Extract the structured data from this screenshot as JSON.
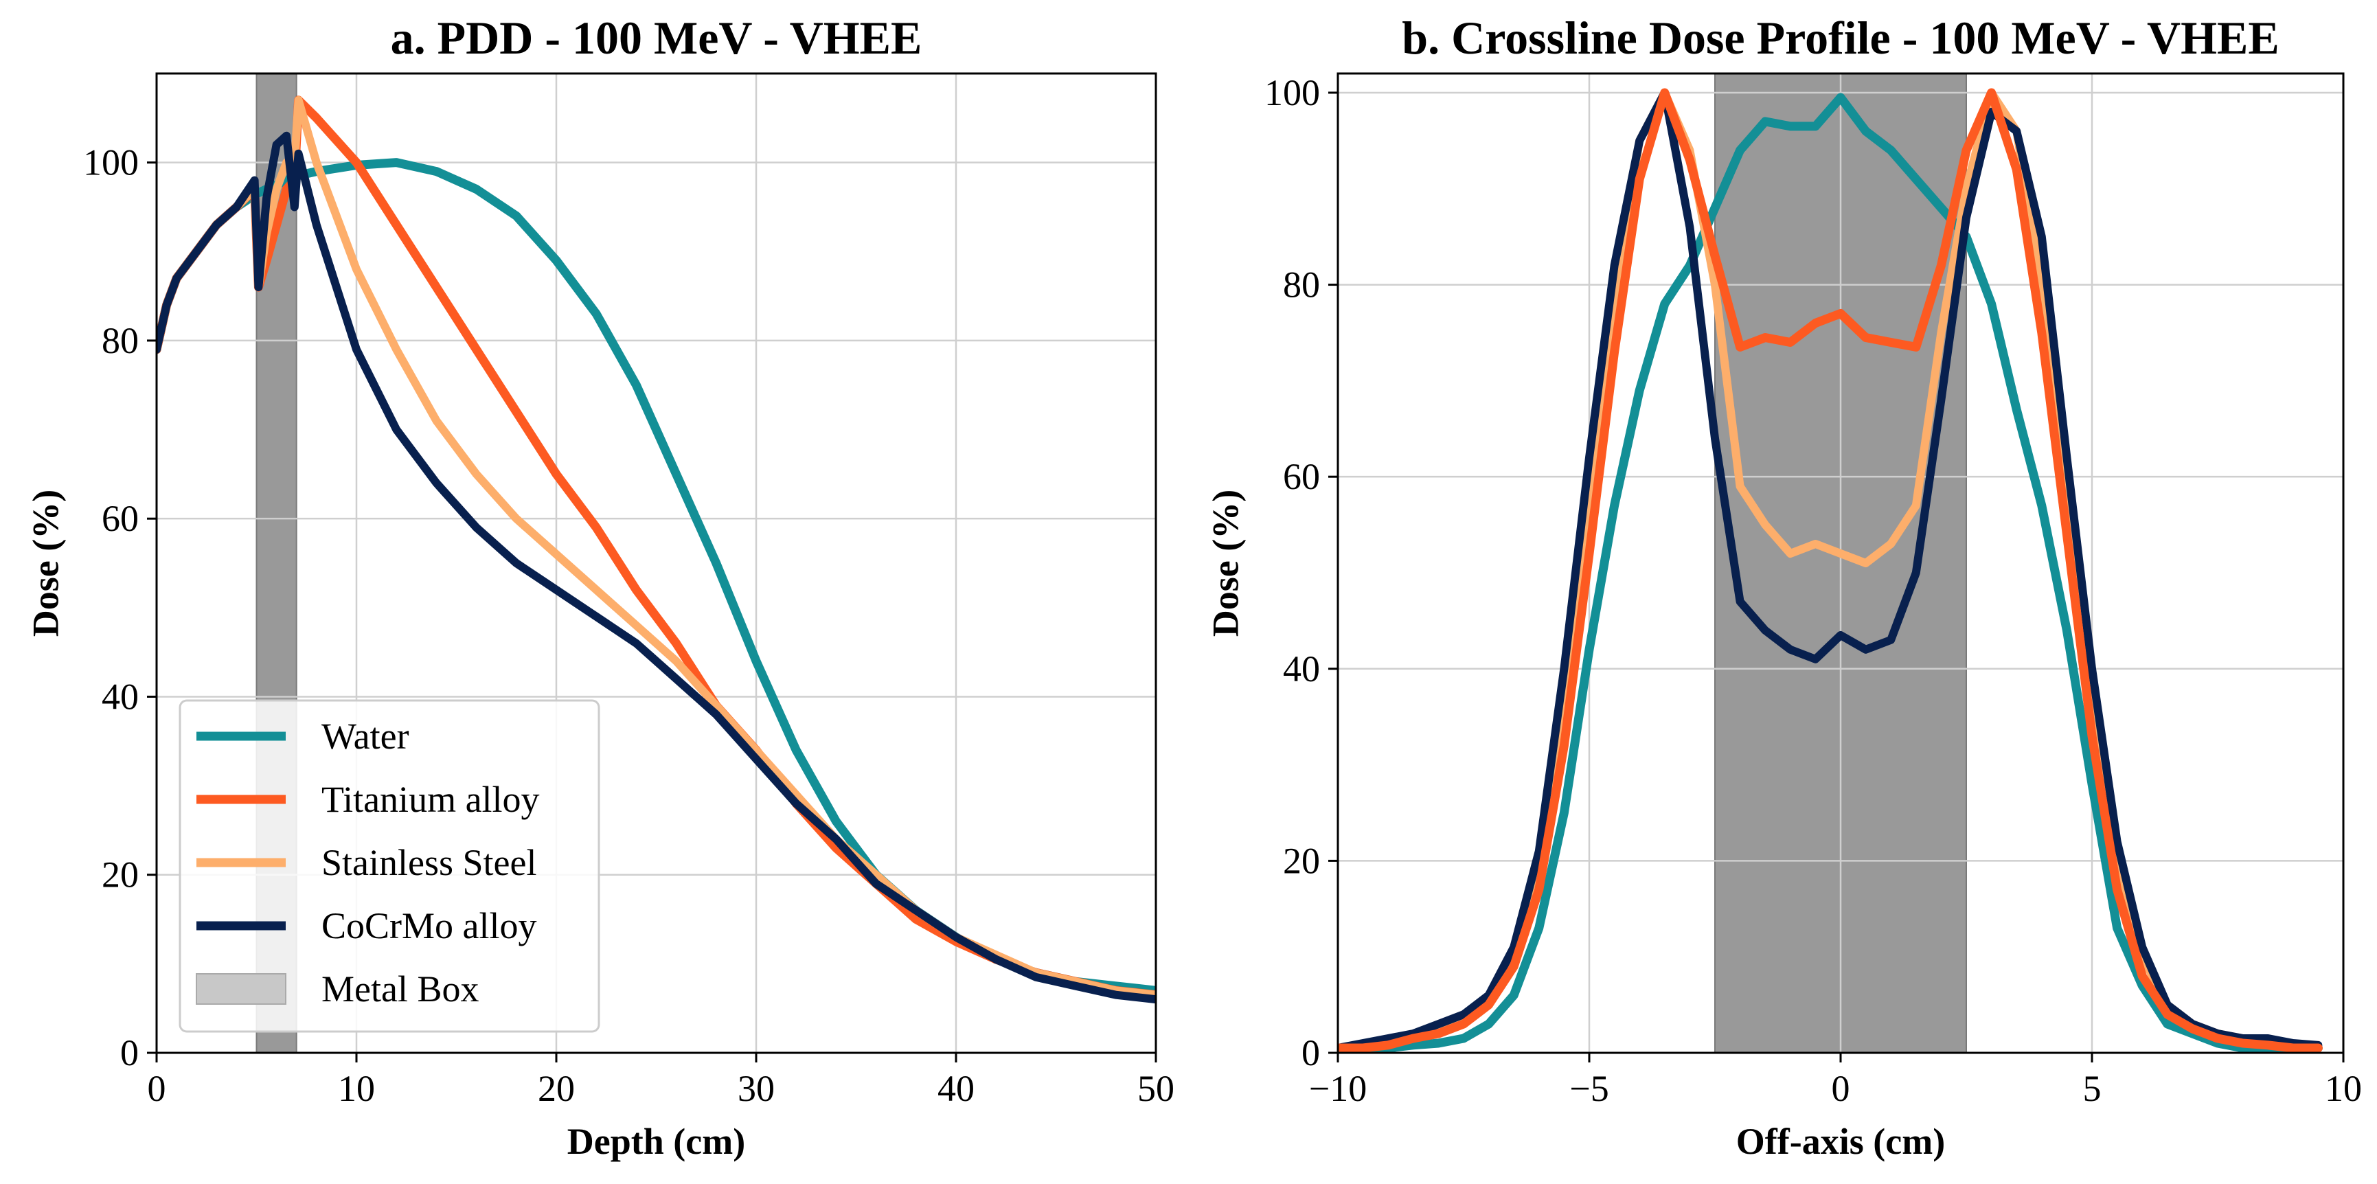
{
  "chart_data": [
    {
      "type": "line",
      "title": "a. PDD - 100 MeV - VHEE",
      "xlabel": "Depth (cm)",
      "ylabel": "Dose (%)",
      "xlim": [
        0,
        50
      ],
      "ylim": [
        0,
        110
      ],
      "xticks": [
        0,
        10,
        20,
        30,
        40,
        50
      ],
      "yticks": [
        0,
        20,
        40,
        60,
        80,
        100
      ],
      "grid": true,
      "shaded_region": {
        "x0": 5,
        "x1": 7,
        "color": "#999999"
      },
      "legend": {
        "position": "lower-left",
        "entries": [
          {
            "label": "Water",
            "color": "#138f96",
            "kind": "line"
          },
          {
            "label": "Titanium alloy",
            "color": "#fd5a21",
            "kind": "line"
          },
          {
            "label": "Stainless Steel",
            "color": "#fdae6b",
            "kind": "line"
          },
          {
            "label": "CoCrMo alloy",
            "color": "#08204e",
            "kind": "line"
          },
          {
            "label": "Metal Box",
            "color": "#c8c8c8",
            "kind": "patch"
          }
        ]
      },
      "series": [
        {
          "name": "Water",
          "color": "#138f96",
          "x": [
            0,
            0.5,
            1,
            2,
            3,
            4,
            5,
            6,
            7,
            8,
            10,
            12,
            14,
            16,
            18,
            20,
            22,
            24,
            26,
            28,
            30,
            32,
            34,
            36,
            38,
            40,
            42,
            44,
            46,
            48,
            50
          ],
          "y": [
            79,
            84,
            87,
            90,
            93,
            95,
            96.5,
            97.5,
            98.5,
            99,
            99.7,
            100,
            99,
            97,
            94,
            89,
            83,
            75,
            65,
            55,
            44,
            34,
            26,
            20,
            16,
            13,
            10.5,
            9,
            8,
            7.5,
            7
          ]
        },
        {
          "name": "Titanium alloy",
          "color": "#fd5a21",
          "x": [
            0,
            0.5,
            1,
            2,
            3,
            4,
            4.9,
            5.1,
            5.5,
            6,
            6.5,
            6.9,
            7.1,
            8,
            10,
            12,
            14,
            16,
            18,
            20,
            22,
            24,
            26,
            28,
            30,
            32,
            34,
            36,
            38,
            40,
            42,
            44,
            46,
            48,
            50
          ],
          "y": [
            79,
            84,
            87,
            90,
            93,
            95,
            97,
            86,
            89,
            93,
            97,
            98,
            107,
            105,
            100,
            93,
            86,
            79,
            72,
            65,
            59,
            52,
            46,
            39,
            34,
            28,
            23,
            19,
            15,
            12.5,
            10.5,
            9,
            8,
            7,
            6.5
          ]
        },
        {
          "name": "Stainless Steel",
          "color": "#fdae6b",
          "x": [
            0,
            0.5,
            1,
            2,
            3,
            4,
            4.9,
            5.1,
            5.5,
            6,
            6.5,
            6.9,
            7.1,
            8,
            10,
            12,
            14,
            16,
            18,
            20,
            22,
            24,
            26,
            28,
            30,
            32,
            34,
            36,
            38,
            40,
            42,
            44,
            46,
            48,
            50
          ],
          "y": [
            79,
            84,
            87,
            90,
            93,
            95,
            97,
            86,
            92,
            97,
            100,
            100,
            107,
            100,
            88,
            79,
            71,
            65,
            60,
            56,
            52,
            48,
            44,
            39,
            34,
            29,
            24,
            20,
            16,
            13,
            11,
            9,
            8,
            7,
            6.5
          ]
        },
        {
          "name": "CoCrMo alloy",
          "color": "#08204e",
          "x": [
            0,
            0.5,
            1,
            2,
            3,
            4,
            4.9,
            5.1,
            5.5,
            6,
            6.5,
            6.9,
            7.1,
            8,
            10,
            12,
            14,
            16,
            18,
            20,
            22,
            24,
            26,
            28,
            30,
            32,
            34,
            36,
            38,
            40,
            42,
            44,
            46,
            48,
            50
          ],
          "y": [
            79,
            84,
            87,
            90,
            93,
            95,
            98,
            86,
            96,
            102,
            103,
            95,
            101,
            93,
            79,
            70,
            64,
            59,
            55,
            52,
            49,
            46,
            42,
            38,
            33,
            28,
            24,
            19,
            16,
            13,
            10.5,
            8.5,
            7.5,
            6.5,
            6
          ]
        }
      ]
    },
    {
      "type": "line",
      "title": "b. Crossline Dose Profile - 100 MeV - VHEE",
      "xlabel": "Off-axis (cm)",
      "ylabel": "Dose (%)",
      "xlim": [
        -10,
        10
      ],
      "ylim": [
        0,
        102
      ],
      "xticks": [
        -10,
        -5,
        0,
        5,
        10
      ],
      "xtick_labels": [
        "−10",
        "−5",
        "0",
        "5",
        "10"
      ],
      "yticks": [
        0,
        20,
        40,
        60,
        80,
        100
      ],
      "grid": true,
      "shaded_region": {
        "x0": -2.5,
        "x1": 2.5,
        "color": "#999999"
      },
      "series": [
        {
          "name": "Water",
          "color": "#138f96",
          "x": [
            -10,
            -9.5,
            -9,
            -8.5,
            -8,
            -7.5,
            -7,
            -6.5,
            -6,
            -5.5,
            -5,
            -4.5,
            -4,
            -3.5,
            -3,
            -2.5,
            -2,
            -1.5,
            -1,
            -0.5,
            0,
            0.5,
            1,
            1.5,
            2,
            2.5,
            3,
            3.5,
            4,
            4.5,
            5,
            5.5,
            6,
            6.5,
            7,
            7.5,
            8,
            8.5,
            9,
            9.5
          ],
          "y": [
            0.5,
            0.5,
            0.5,
            0.8,
            1,
            1.5,
            3,
            6,
            13,
            25,
            42,
            57,
            69,
            78,
            82,
            88,
            94,
            97,
            96.5,
            96.5,
            99.5,
            96,
            94,
            91,
            88,
            85,
            78,
            67,
            57,
            44,
            28,
            13,
            7,
            3,
            2,
            1,
            0.5,
            0.5,
            0.5,
            0.5
          ]
        },
        {
          "name": "Stainless Steel",
          "color": "#fdae6b",
          "x": [
            -10,
            -9.5,
            -9,
            -8.5,
            -8,
            -7.5,
            -7,
            -6.5,
            -6,
            -5.5,
            -5,
            -4.5,
            -4,
            -3.5,
            -3,
            -2.5,
            -2,
            -1.5,
            -1,
            -0.5,
            0,
            0.5,
            1,
            1.5,
            2,
            2.5,
            3,
            3.5,
            4,
            4.5,
            5,
            5.5,
            6,
            6.5,
            7,
            7.5,
            8,
            8.5,
            9,
            9.5
          ],
          "y": [
            0.5,
            0.8,
            1,
            1.5,
            2.5,
            3.5,
            6,
            10,
            19,
            35,
            55,
            78,
            95,
            100,
            94,
            80,
            59,
            55,
            52,
            53,
            52,
            51,
            53,
            57,
            75,
            90,
            100,
            96,
            80,
            58,
            36,
            20,
            10,
            5,
            3,
            2,
            1.5,
            1,
            0.8,
            0.5
          ]
        },
        {
          "name": "CoCrMo alloy",
          "color": "#08204e",
          "x": [
            -10,
            -9.5,
            -9,
            -8.5,
            -8,
            -7.5,
            -7,
            -6.5,
            -6,
            -5.5,
            -5,
            -4.5,
            -4,
            -3.5,
            -3,
            -2.5,
            -2,
            -1.5,
            -1,
            -0.5,
            0,
            0.5,
            1,
            1.5,
            2,
            2.5,
            3,
            3.5,
            4,
            4.5,
            5,
            5.5,
            6,
            6.5,
            7,
            7.5,
            8,
            8.5,
            9,
            9.5
          ],
          "y": [
            0.5,
            1,
            1.5,
            2,
            3,
            4,
            6,
            11,
            21,
            40,
            62,
            82,
            95,
            100,
            86,
            64,
            47,
            44,
            42,
            41,
            43.5,
            42,
            43,
            50,
            68,
            87,
            98,
            96,
            85,
            62,
            40,
            22,
            11,
            5,
            3,
            2,
            1.5,
            1.5,
            1,
            0.8
          ]
        },
        {
          "name": "Titanium alloy",
          "color": "#fd5a21",
          "x": [
            -10,
            -9.5,
            -9,
            -8.5,
            -8,
            -7.5,
            -7,
            -6.5,
            -6,
            -5.5,
            -5,
            -4.5,
            -4,
            -3.5,
            -3,
            -2.5,
            -2,
            -1.5,
            -1,
            -0.5,
            0,
            0.5,
            1,
            1.5,
            2,
            2.5,
            3,
            3.5,
            4,
            4.5,
            5,
            5.5,
            6,
            6.5,
            7,
            7.5,
            8,
            8.5,
            9,
            9.5
          ],
          "y": [
            0.5,
            0.5,
            0.8,
            1.5,
            2,
            3,
            5,
            9,
            17,
            32,
            52,
            73,
            91,
            100,
            93,
            83,
            73.5,
            74.5,
            74,
            76,
            77,
            74.5,
            74,
            73.5,
            82,
            94,
            100,
            92,
            75,
            54,
            33,
            17,
            8,
            4,
            2.5,
            1.5,
            1,
            0.8,
            0.5,
            0.5
          ]
        }
      ]
    }
  ]
}
